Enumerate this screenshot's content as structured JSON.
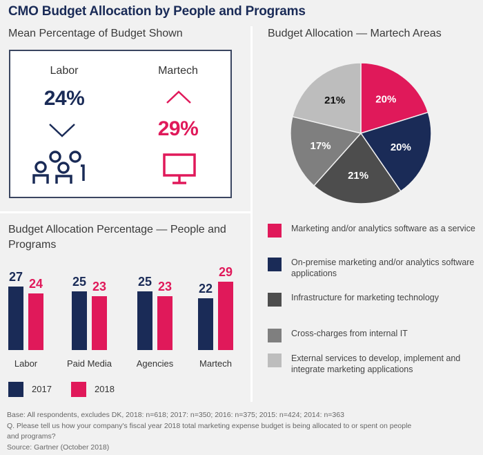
{
  "title": "CMO Budget Allocation by People and Programs",
  "kpi": {
    "heading": "Mean Percentage of Budget Shown",
    "labor": {
      "label": "Labor",
      "value": "24%",
      "trend": "down",
      "icon": "people-group-icon",
      "color": "#1a2b57"
    },
    "martech": {
      "label": "Martech",
      "value": "29%",
      "trend": "up",
      "icon": "monitor-icon",
      "color": "#e0195a"
    }
  },
  "colors": {
    "navy": "#1a2b57",
    "pink": "#e0195a",
    "dark_gray": "#4d4d4d",
    "mid_gray": "#7f7f7f",
    "light_gray": "#bdbdbd"
  },
  "chart_data": [
    {
      "type": "bar",
      "title": "Budget Allocation Percentage — People and Programs",
      "categories": [
        "Labor",
        "Paid Media",
        "Agencies",
        "Martech"
      ],
      "series": [
        {
          "name": "2017",
          "values": [
            27,
            25,
            25,
            22
          ],
          "color": "#1a2b57"
        },
        {
          "name": "2018",
          "values": [
            24,
            23,
            23,
            29
          ],
          "color": "#e0195a"
        }
      ],
      "xlabel": "",
      "ylabel": "",
      "ylim": [
        0,
        30
      ],
      "grid": false,
      "legend": "bottom-left"
    },
    {
      "type": "pie",
      "title": "Budget Allocation — Martech Areas",
      "slices": [
        {
          "label": "Marketing and/or analytics software as a service",
          "value": 20,
          "display": "20%",
          "color": "#e0195a",
          "text_color": "#ffffff"
        },
        {
          "label": "On-premise marketing and/or analytics software applications",
          "value": 20,
          "display": "20%",
          "color": "#1a2b57",
          "text_color": "#ffffff"
        },
        {
          "label": "Infrastructure for marketing technology",
          "value": 21,
          "display": "21%",
          "color": "#4d4d4d",
          "text_color": "#ffffff"
        },
        {
          "label": "Cross-charges from internal IT",
          "value": 17,
          "display": "17%",
          "color": "#7f7f7f",
          "text_color": "#ffffff"
        },
        {
          "label": "External services to develop, implement and integrate marketing applications",
          "value": 21,
          "display": "21%",
          "color": "#bdbdbd",
          "text_color": "#111111"
        }
      ],
      "legend": "bottom"
    }
  ],
  "footnotes": [
    "Base: All respondents, excludes DK, 2018: n=618; 2017: n=350; 2016: n=375; 2015: n=424; 2014: n=363",
    "Q. Please tell us how your company's fiscal year 2018 total marketing expense budget is being allocated to or spent on people and programs?",
    "Source: Gartner (October 2018)"
  ]
}
